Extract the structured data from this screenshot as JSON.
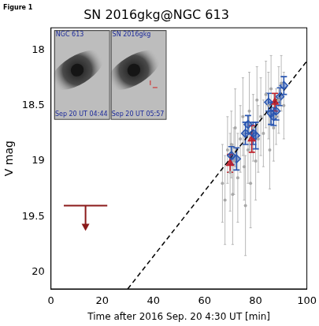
{
  "chart_data": {
    "type": "scatter",
    "title": "SN 2016gkg@NGC 613",
    "figure_label": "Figure 1",
    "x_label": "Time after 2016 Sep. 20 4:30 UT [min]",
    "y_label": "V mag",
    "xlim": [
      0,
      100
    ],
    "xticks": [
      0,
      20,
      40,
      60,
      80,
      100
    ],
    "ylim": [
      20.15,
      17.8
    ],
    "yticks": [
      18,
      18.5,
      19,
      19.5,
      20
    ],
    "grid": false,
    "insets": [
      {
        "label": "NGC 613",
        "date": "Sep 20 UT 04:44"
      },
      {
        "label": "SN 2016gkg",
        "date": "Sep 20 UT 05:57"
      }
    ],
    "series": [
      {
        "color": "#a8a8a8",
        "marker": "circle",
        "x": [
          67,
          68,
          69,
          70,
          70.5,
          71,
          71.5,
          72,
          73,
          74,
          75,
          75.5,
          76,
          77,
          77.5,
          78,
          79,
          80,
          80.5,
          81,
          82,
          83,
          84,
          85,
          85.5,
          86,
          87,
          88,
          89,
          90,
          91
        ],
        "values": [
          19.2,
          19.35,
          18.9,
          19.1,
          18.85,
          19.3,
          19.0,
          18.7,
          19.15,
          18.8,
          18.6,
          19.05,
          19.4,
          18.9,
          18.55,
          19.2,
          18.7,
          19.0,
          18.45,
          18.8,
          18.6,
          18.75,
          18.4,
          18.5,
          18.9,
          18.35,
          18.7,
          18.6,
          18.45,
          18.3,
          18.5
        ],
        "errors": [
          0.35,
          0.4,
          0.3,
          0.35,
          0.3,
          0.45,
          0.3,
          0.35,
          0.4,
          0.3,
          0.35,
          0.3,
          0.45,
          0.3,
          0.35,
          0.4,
          0.3,
          0.35,
          0.3,
          0.3,
          0.35,
          0.3,
          0.3,
          0.3,
          0.35,
          0.3,
          0.3,
          0.25,
          0.3,
          0.25,
          0.3
        ]
      },
      {
        "color": "#2a56b0",
        "marker": "diamond",
        "x": [
          70.5,
          72.5,
          76,
          77,
          79,
          80,
          85,
          86,
          87,
          88,
          89.5,
          91
        ],
        "values": [
          18.95,
          18.98,
          18.75,
          18.67,
          18.75,
          18.77,
          18.47,
          18.57,
          18.6,
          18.55,
          18.42,
          18.32
        ],
        "errors": [
          0.08,
          0.1,
          0.1,
          0.08,
          0.1,
          0.12,
          0.08,
          0.1,
          0.08,
          0.08,
          0.08,
          0.08
        ]
      },
      {
        "color": "#c0202a",
        "marker": "triangle",
        "x": [
          70,
          78.5,
          87.5
        ],
        "values": [
          19.02,
          18.8,
          18.47
        ],
        "errors": [
          0.08,
          0.12,
          0.08
        ]
      },
      {
        "type": "line",
        "color": "#000000",
        "line_style": "dashed",
        "x": [
          30,
          100
        ],
        "values": [
          20.15,
          18.1
        ]
      },
      {
        "type": "upper_limit",
        "color": "#8b1a1a",
        "x": [
          5,
          22
        ],
        "values": [
          19.4,
          19.4
        ]
      }
    ]
  }
}
